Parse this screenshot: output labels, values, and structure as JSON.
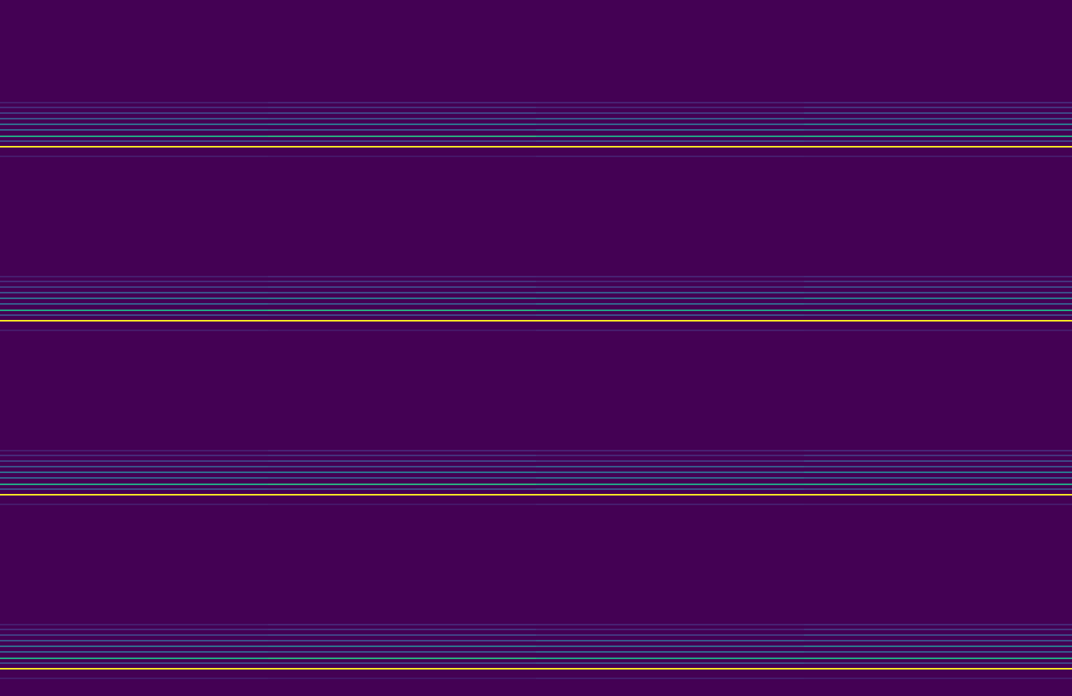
{
  "chart_data": {
    "type": "heatmap",
    "tick_labels": false,
    "xlim": [
      0,
      4
    ],
    "ylim": [
      0,
      434
    ],
    "x": [
      0.5,
      1.5,
      2.5,
      3.5
    ],
    "y": [
      64,
      67,
      70.5,
      74,
      77.5,
      81,
      85,
      88,
      91.5,
      97.5,
      172.5,
      175.5,
      179,
      182.5,
      186,
      189.5,
      193.5,
      196.5,
      200,
      206,
      281,
      284,
      287.5,
      291,
      294.5,
      298,
      302,
      305,
      308.5,
      314.5,
      389.5,
      392.5,
      396,
      399.5,
      403,
      406.5,
      410.5,
      413.5,
      417,
      423
    ],
    "cells": [
      [
        0.08,
        0.1,
        0.09,
        0.11
      ],
      [
        0.12,
        0.14,
        0.1,
        0.15
      ],
      [
        0.18,
        0.2,
        0.16,
        0.22
      ],
      [
        0.25,
        0.22,
        0.28,
        0.24
      ],
      [
        0.35,
        0.38,
        0.32,
        0.4
      ],
      [
        0.3,
        0.26,
        0.33,
        0.28
      ],
      [
        0.6,
        0.62,
        0.58,
        0.6
      ],
      [
        0.22,
        0.2,
        0.24,
        0.2
      ],
      [
        1,
        1,
        1,
        1
      ],
      [
        0.07,
        0.06,
        0.08,
        0.07
      ],
      [
        0.08,
        0.1,
        0.09,
        0.11
      ],
      [
        0.12,
        0.14,
        0.1,
        0.15
      ],
      [
        0.18,
        0.2,
        0.16,
        0.22
      ],
      [
        0.25,
        0.22,
        0.28,
        0.24
      ],
      [
        0.35,
        0.38,
        0.32,
        0.4
      ],
      [
        0.3,
        0.26,
        0.33,
        0.28
      ],
      [
        0.6,
        0.62,
        0.58,
        0.6
      ],
      [
        0.22,
        0.2,
        0.24,
        0.2
      ],
      [
        1,
        1,
        1,
        1
      ],
      [
        0.07,
        0.06,
        0.08,
        0.07
      ],
      [
        0.08,
        0.1,
        0.09,
        0.11
      ],
      [
        0.12,
        0.14,
        0.1,
        0.15
      ],
      [
        0.18,
        0.2,
        0.16,
        0.22
      ],
      [
        0.25,
        0.22,
        0.28,
        0.24
      ],
      [
        0.35,
        0.38,
        0.32,
        0.4
      ],
      [
        0.3,
        0.26,
        0.33,
        0.28
      ],
      [
        0.6,
        0.62,
        0.58,
        0.6
      ],
      [
        0.22,
        0.2,
        0.24,
        0.2
      ],
      [
        1,
        1,
        1,
        1
      ],
      [
        0.07,
        0.06,
        0.08,
        0.07
      ],
      [
        0.08,
        0.1,
        0.09,
        0.11
      ],
      [
        0.12,
        0.14,
        0.1,
        0.15
      ],
      [
        0.18,
        0.2,
        0.16,
        0.22
      ],
      [
        0.25,
        0.22,
        0.28,
        0.24
      ],
      [
        0.35,
        0.38,
        0.32,
        0.4
      ],
      [
        0.3,
        0.26,
        0.33,
        0.28
      ],
      [
        0.6,
        0.62,
        0.58,
        0.6
      ],
      [
        0.22,
        0.2,
        0.24,
        0.2
      ],
      [
        1,
        1,
        1,
        1
      ],
      [
        0.07,
        0.06,
        0.08,
        0.07
      ]
    ],
    "colorbar_range": [
      0,
      1
    ]
  }
}
